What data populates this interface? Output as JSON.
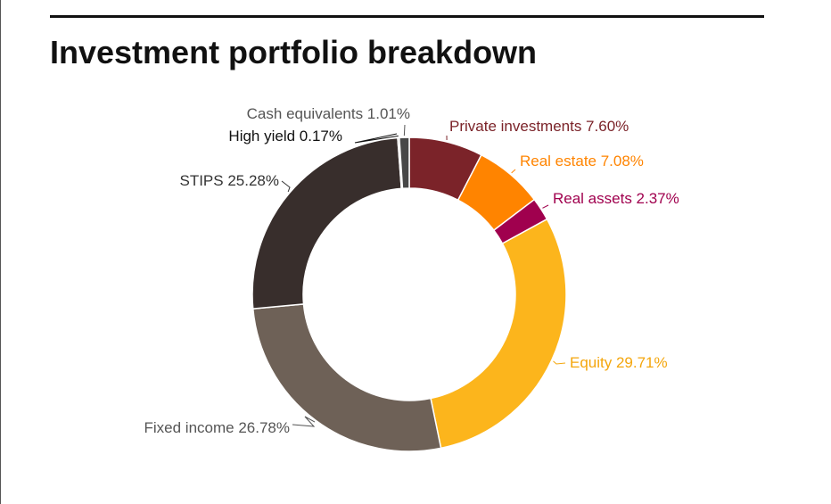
{
  "chart_data": {
    "type": "pie",
    "title": "Investment portfolio breakdown",
    "series": [
      {
        "name": "Private investments",
        "label": "Private investments  7.60%",
        "value": 7.6,
        "color": "#7b2329",
        "label_color": "#7b2329"
      },
      {
        "name": "Real estate",
        "label": "Real estate 7.08%",
        "value": 7.08,
        "color": "#ff8400",
        "label_color": "#ff8400"
      },
      {
        "name": "Real assets",
        "label": "Real assets 2.37%",
        "value": 2.37,
        "color": "#a0004e",
        "label_color": "#a0004e"
      },
      {
        "name": "Equity",
        "label": "Equity 29.71%",
        "value": 29.71,
        "color": "#fcb51c",
        "label_color": "#f4a60c"
      },
      {
        "name": "Fixed income",
        "label": "Fixed income 26.78%",
        "value": 26.78,
        "color": "#6e6157",
        "label_color": "#555555"
      },
      {
        "name": "STIPS",
        "label": "STIPS 25.28%",
        "value": 25.28,
        "color": "#382e2c",
        "label_color": "#333333"
      },
      {
        "name": "High yield",
        "label": "High yield 0.17%",
        "value": 0.17,
        "color": "#8a8580",
        "label_color": "#111111"
      },
      {
        "name": "Cash equivalents",
        "label": "Cash equivalents 1.01%",
        "value": 1.01,
        "color": "#474747",
        "label_color": "#555555"
      }
    ]
  }
}
